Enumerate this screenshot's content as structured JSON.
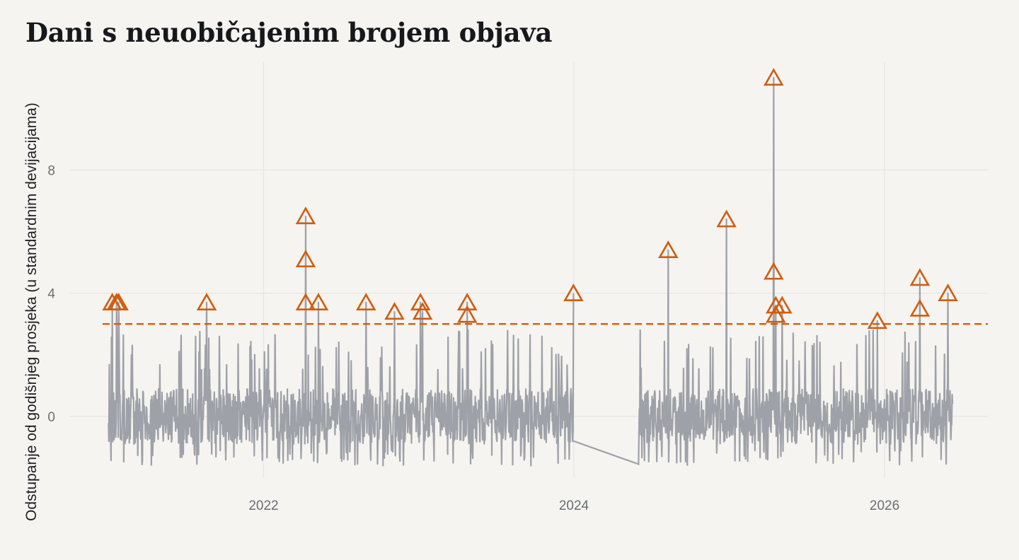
{
  "title": "Dani s neuobičajenim brojem objava",
  "chart_data": {
    "type": "line",
    "title": "Dani s neuobičajenim brojem objava",
    "xlabel": "",
    "ylabel": "Odstupanje od godišnjeg prosjeka (u standardnim devijacijama)",
    "x_ticks": [
      "2022",
      "2024",
      "2026"
    ],
    "y_ticks": [
      0,
      4,
      8
    ],
    "xlim": [
      "2020-10-01",
      "2026-09-01"
    ],
    "ylim": [
      -2,
      11.5
    ],
    "grid": true,
    "legend": "none",
    "threshold": 3,
    "colors": {
      "series": "#9ea1a8",
      "outlier": "#cf5d10",
      "threshold": "#cf5d10",
      "grid": "#e6e5e1"
    },
    "segments": [
      {
        "start": "2021-01-01",
        "end": "2023-12-31"
      },
      {
        "start": "2024-06-01",
        "end": "2026-06-10"
      }
    ],
    "outliers": [
      {
        "date": "2021-01-10",
        "value": 3.7
      },
      {
        "date": "2021-01-20",
        "value": 3.7
      },
      {
        "date": "2021-01-25",
        "value": 3.7
      },
      {
        "date": "2021-08-20",
        "value": 3.7
      },
      {
        "date": "2022-04-10",
        "value": 6.5
      },
      {
        "date": "2022-04-10",
        "value": 5.1
      },
      {
        "date": "2022-04-10",
        "value": 3.7
      },
      {
        "date": "2022-05-10",
        "value": 3.7
      },
      {
        "date": "2022-08-30",
        "value": 3.7
      },
      {
        "date": "2022-11-05",
        "value": 3.4
      },
      {
        "date": "2023-01-05",
        "value": 3.7
      },
      {
        "date": "2023-01-10",
        "value": 3.4
      },
      {
        "date": "2023-04-25",
        "value": 3.7
      },
      {
        "date": "2023-04-25",
        "value": 3.3
      },
      {
        "date": "2023-12-31",
        "value": 4.0
      },
      {
        "date": "2024-08-10",
        "value": 5.4
      },
      {
        "date": "2024-12-25",
        "value": 6.4
      },
      {
        "date": "2025-04-15",
        "value": 11.0
      },
      {
        "date": "2025-04-15",
        "value": 4.7
      },
      {
        "date": "2025-04-20",
        "value": 3.6
      },
      {
        "date": "2025-04-20",
        "value": 3.3
      },
      {
        "date": "2025-05-05",
        "value": 3.6
      },
      {
        "date": "2025-12-15",
        "value": 3.1
      },
      {
        "date": "2026-03-25",
        "value": 4.5
      },
      {
        "date": "2026-03-25",
        "value": 3.5
      },
      {
        "date": "2026-05-30",
        "value": 4.0
      }
    ]
  }
}
